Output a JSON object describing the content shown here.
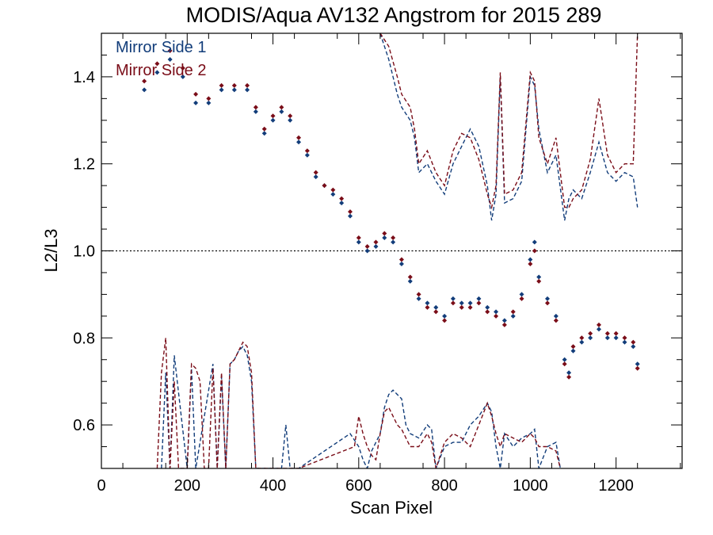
{
  "chart_data": {
    "type": "scatter",
    "title": "MODIS/Aqua AV132 Angstrom for 2015 289",
    "xlabel": "Scan Pixel",
    "ylabel": "L2/L3",
    "xlim": [
      0,
      1354
    ],
    "ylim": [
      0.5,
      1.5
    ],
    "xticks": [
      "0",
      "200",
      "400",
      "600",
      "800",
      "1000",
      "1200"
    ],
    "yticks": [
      "0.6",
      "0.8",
      "1.0",
      "1.2",
      "1.4"
    ],
    "reference_line": {
      "y": 1.0,
      "style": "dotted"
    },
    "legend": {
      "placement": "top-left"
    },
    "colors": {
      "mirror1": "#123d7a",
      "mirror2": "#7a0d18"
    },
    "series": [
      {
        "name": "Mirror Side 1",
        "color": "#123d7a",
        "x": [
          100,
          130,
          160,
          190,
          220,
          250,
          280,
          310,
          340,
          360,
          380,
          400,
          420,
          440,
          460,
          480,
          500,
          520,
          540,
          560,
          580,
          600,
          620,
          640,
          660,
          680,
          700,
          720,
          740,
          760,
          780,
          800,
          820,
          840,
          860,
          880,
          900,
          920,
          940,
          960,
          980,
          1000,
          1010,
          1020,
          1040,
          1060,
          1080,
          1090,
          1100,
          1120,
          1140,
          1160,
          1180,
          1200,
          1220,
          1240,
          1250
        ],
        "y": [
          1.37,
          1.41,
          1.44,
          1.4,
          1.34,
          1.34,
          1.37,
          1.37,
          1.37,
          1.32,
          1.27,
          1.3,
          1.32,
          1.3,
          1.25,
          1.22,
          1.17,
          1.15,
          1.13,
          1.11,
          1.08,
          1.02,
          1.0,
          1.01,
          1.03,
          1.02,
          0.97,
          0.93,
          0.89,
          0.88,
          0.87,
          0.85,
          0.89,
          0.88,
          0.88,
          0.89,
          0.87,
          0.86,
          0.84,
          0.85,
          0.9,
          0.98,
          1.02,
          0.94,
          0.89,
          0.85,
          0.75,
          0.72,
          0.77,
          0.79,
          0.8,
          0.82,
          0.8,
          0.8,
          0.79,
          0.78,
          0.74
        ]
      },
      {
        "name": "Mirror Side 2",
        "color": "#7a0d18",
        "x": [
          100,
          130,
          160,
          190,
          220,
          250,
          280,
          310,
          340,
          360,
          380,
          400,
          420,
          440,
          460,
          480,
          500,
          520,
          540,
          560,
          580,
          600,
          620,
          640,
          660,
          680,
          700,
          720,
          740,
          760,
          780,
          800,
          820,
          840,
          860,
          880,
          900,
          920,
          940,
          960,
          980,
          1000,
          1010,
          1020,
          1040,
          1060,
          1080,
          1090,
          1100,
          1120,
          1140,
          1160,
          1180,
          1200,
          1220,
          1240,
          1250
        ],
        "y": [
          1.39,
          1.43,
          1.46,
          1.42,
          1.36,
          1.35,
          1.38,
          1.38,
          1.38,
          1.33,
          1.28,
          1.31,
          1.33,
          1.31,
          1.26,
          1.23,
          1.18,
          1.15,
          1.14,
          1.12,
          1.09,
          1.03,
          1.01,
          1.02,
          1.04,
          1.03,
          0.98,
          0.94,
          0.9,
          0.87,
          0.86,
          0.84,
          0.88,
          0.87,
          0.87,
          0.88,
          0.86,
          0.85,
          0.83,
          0.86,
          0.89,
          0.97,
          1.0,
          0.93,
          0.88,
          0.84,
          0.74,
          0.71,
          0.78,
          0.8,
          0.81,
          0.83,
          0.81,
          0.81,
          0.8,
          0.79,
          0.73
        ]
      },
      {
        "name": "",
        "role": "upper-envelope-1",
        "color": "#123d7a",
        "style": "dashed",
        "x": [
          650,
          670,
          690,
          700,
          720,
          730,
          740,
          760,
          780,
          800,
          820,
          840,
          860,
          880,
          900,
          910,
          920,
          930,
          940,
          960,
          980,
          1000,
          1010,
          1020,
          1040,
          1060,
          1080,
          1090,
          1100,
          1120,
          1140,
          1160,
          1180,
          1200,
          1220,
          1240,
          1250
        ],
        "y": [
          1.5,
          1.44,
          1.36,
          1.33,
          1.3,
          1.26,
          1.18,
          1.2,
          1.16,
          1.13,
          1.2,
          1.24,
          1.28,
          1.24,
          1.15,
          1.07,
          1.13,
          1.4,
          1.11,
          1.12,
          1.16,
          1.4,
          1.38,
          1.28,
          1.18,
          1.22,
          1.07,
          1.12,
          1.14,
          1.12,
          1.18,
          1.25,
          1.18,
          1.16,
          1.18,
          1.17,
          1.1
        ]
      },
      {
        "name": "",
        "role": "upper-envelope-2",
        "color": "#7a0d18",
        "style": "dashed",
        "x": [
          650,
          670,
          690,
          700,
          720,
          730,
          740,
          760,
          780,
          800,
          820,
          840,
          860,
          880,
          900,
          910,
          920,
          930,
          940,
          960,
          980,
          1000,
          1010,
          1020,
          1040,
          1060,
          1080,
          1090,
          1100,
          1120,
          1140,
          1160,
          1180,
          1200,
          1220,
          1240,
          1250
        ],
        "y": [
          1.5,
          1.47,
          1.4,
          1.36,
          1.33,
          1.28,
          1.2,
          1.23,
          1.18,
          1.15,
          1.23,
          1.27,
          1.26,
          1.21,
          1.13,
          1.1,
          1.15,
          1.41,
          1.13,
          1.14,
          1.18,
          1.41,
          1.39,
          1.26,
          1.2,
          1.26,
          1.1,
          1.1,
          1.12,
          1.14,
          1.21,
          1.35,
          1.22,
          1.18,
          1.2,
          1.2,
          1.5
        ]
      },
      {
        "name": "",
        "role": "lower-envelope-1",
        "color": "#123d7a",
        "style": "dashed",
        "x": [
          140,
          150,
          160,
          170,
          200,
          210,
          220,
          260,
          270,
          280,
          290,
          300,
          310,
          320,
          330,
          340,
          350,
          360,
          380,
          390,
          400,
          410,
          420,
          430,
          440,
          460,
          580,
          600,
          610,
          620,
          630,
          640,
          650,
          660,
          670,
          680,
          690,
          700,
          710,
          720,
          740,
          760,
          770,
          780,
          800,
          820,
          840,
          860,
          880,
          900,
          910,
          920,
          930,
          940,
          960,
          980,
          1000,
          1010,
          1020,
          1040,
          1060,
          1070
        ],
        "y": [
          0.5,
          0.72,
          0.5,
          0.76,
          0.5,
          0.73,
          0.5,
          0.74,
          0.5,
          0.71,
          0.5,
          0.74,
          0.75,
          0.77,
          0.78,
          0.76,
          0.7,
          0.5,
          0.5,
          0.5,
          0.5,
          0.5,
          0.5,
          0.6,
          0.5,
          0.5,
          0.58,
          0.55,
          0.52,
          0.5,
          0.54,
          0.56,
          0.58,
          0.64,
          0.67,
          0.68,
          0.67,
          0.66,
          0.6,
          0.58,
          0.57,
          0.6,
          0.59,
          0.5,
          0.55,
          0.56,
          0.56,
          0.6,
          0.62,
          0.65,
          0.63,
          0.55,
          0.5,
          0.58,
          0.55,
          0.57,
          0.58,
          0.59,
          0.5,
          0.55,
          0.56,
          0.5
        ]
      },
      {
        "name": "",
        "role": "lower-envelope-2",
        "color": "#7a0d18",
        "style": "dashed",
        "x": [
          130,
          140,
          150,
          160,
          170,
          180,
          190,
          200,
          210,
          220,
          230,
          240,
          250,
          260,
          270,
          280,
          290,
          300,
          310,
          320,
          330,
          340,
          350,
          360,
          380,
          390,
          400,
          410,
          420,
          430,
          440,
          460,
          590,
          600,
          610,
          620,
          630,
          640,
          650,
          660,
          670,
          680,
          690,
          700,
          710,
          720,
          740,
          760,
          770,
          780,
          800,
          820,
          840,
          860,
          880,
          900,
          910,
          920,
          930,
          940,
          960,
          980,
          1000,
          1010,
          1020,
          1040,
          1060,
          1070
        ],
        "y": [
          0.5,
          0.72,
          0.8,
          0.5,
          0.7,
          0.5,
          0.5,
          0.5,
          0.74,
          0.73,
          0.7,
          0.5,
          0.5,
          0.73,
          0.5,
          0.72,
          0.5,
          0.74,
          0.75,
          0.77,
          0.79,
          0.78,
          0.72,
          0.5,
          0.5,
          0.5,
          0.5,
          0.5,
          0.5,
          0.5,
          0.5,
          0.5,
          0.55,
          0.62,
          0.58,
          0.55,
          0.53,
          0.52,
          0.58,
          0.63,
          0.64,
          0.62,
          0.6,
          0.59,
          0.57,
          0.55,
          0.55,
          0.58,
          0.56,
          0.5,
          0.56,
          0.58,
          0.57,
          0.55,
          0.6,
          0.65,
          0.62,
          0.58,
          0.55,
          0.58,
          0.57,
          0.56,
          0.58,
          0.57,
          0.55,
          0.55,
          0.54,
          0.5
        ]
      }
    ]
  }
}
